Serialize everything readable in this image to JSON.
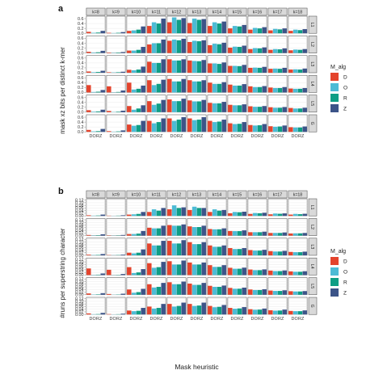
{
  "colors": {
    "D": "#E4432C",
    "O": "#4DBBD5",
    "R": "#0E9E85",
    "Z": "#3C5488"
  },
  "legend": {
    "title": "M_alg",
    "entries": [
      "D",
      "O",
      "R",
      "Z"
    ]
  },
  "chart_data": [
    {
      "panel_label": "a",
      "type": "bar",
      "ylabel": "mask xz bits per distinct k-mer",
      "xlabel": "",
      "ylim": [
        0,
        0.7
      ],
      "yticks": [
        "0.0",
        "0.2",
        "0.4",
        "0.6"
      ],
      "ytick_values": [
        0,
        0.2,
        0.4,
        0.6
      ],
      "columns": [
        "k=8",
        "k=9",
        "k=10",
        "k=11",
        "k=12",
        "k=13",
        "k=14",
        "k=15",
        "k=16",
        "k=17",
        "k=18"
      ],
      "rows": [
        "L1",
        "L2",
        "L3",
        "L4",
        "L5",
        "G"
      ],
      "x_tick_label": "DORZ",
      "categories": [
        "D",
        "O",
        "R",
        "Z"
      ],
      "values": [
        [
          [
            0.06,
            0.02,
            0.03,
            0.1
          ],
          [
            0.02,
            0.01,
            0.02,
            0.05
          ],
          [
            0.1,
            0.12,
            0.15,
            0.28
          ],
          [
            0.3,
            0.45,
            0.4,
            0.6
          ],
          [
            0.45,
            0.65,
            0.55,
            0.62
          ],
          [
            0.42,
            0.6,
            0.55,
            0.58
          ],
          [
            0.3,
            0.45,
            0.4,
            0.48
          ],
          [
            0.2,
            0.3,
            0.28,
            0.34
          ],
          [
            0.15,
            0.22,
            0.2,
            0.25
          ],
          [
            0.12,
            0.18,
            0.16,
            0.2
          ],
          [
            0.1,
            0.15,
            0.13,
            0.17
          ]
        ],
        [
          [
            0.05,
            0.02,
            0.03,
            0.09
          ],
          [
            0.02,
            0.01,
            0.02,
            0.04
          ],
          [
            0.1,
            0.1,
            0.13,
            0.25
          ],
          [
            0.35,
            0.4,
            0.4,
            0.55
          ],
          [
            0.5,
            0.55,
            0.52,
            0.58
          ],
          [
            0.45,
            0.5,
            0.48,
            0.52
          ],
          [
            0.32,
            0.38,
            0.36,
            0.42
          ],
          [
            0.22,
            0.26,
            0.25,
            0.3
          ],
          [
            0.16,
            0.2,
            0.19,
            0.23
          ],
          [
            0.13,
            0.16,
            0.15,
            0.19
          ],
          [
            0.11,
            0.14,
            0.13,
            0.16
          ]
        ],
        [
          [
            0.05,
            0.02,
            0.03,
            0.08
          ],
          [
            0.02,
            0.01,
            0.02,
            0.04
          ],
          [
            0.12,
            0.1,
            0.13,
            0.25
          ],
          [
            0.45,
            0.4,
            0.4,
            0.55
          ],
          [
            0.55,
            0.5,
            0.5,
            0.55
          ],
          [
            0.5,
            0.48,
            0.47,
            0.52
          ],
          [
            0.38,
            0.38,
            0.36,
            0.42
          ],
          [
            0.28,
            0.28,
            0.27,
            0.32
          ],
          [
            0.2,
            0.21,
            0.2,
            0.24
          ],
          [
            0.16,
            0.17,
            0.16,
            0.2
          ],
          [
            0.13,
            0.14,
            0.13,
            0.17
          ]
        ],
        [
          [
            0.3,
            0.02,
            0.03,
            0.1
          ],
          [
            0.25,
            0.01,
            0.02,
            0.08
          ],
          [
            0.4,
            0.12,
            0.15,
            0.28
          ],
          [
            0.5,
            0.3,
            0.35,
            0.52
          ],
          [
            0.55,
            0.45,
            0.45,
            0.55
          ],
          [
            0.5,
            0.45,
            0.45,
            0.5
          ],
          [
            0.4,
            0.35,
            0.35,
            0.42
          ],
          [
            0.32,
            0.28,
            0.28,
            0.34
          ],
          [
            0.25,
            0.22,
            0.22,
            0.26
          ],
          [
            0.2,
            0.18,
            0.18,
            0.22
          ],
          [
            0.16,
            0.15,
            0.15,
            0.18
          ]
        ],
        [
          [
            0.08,
            0.02,
            0.03,
            0.1
          ],
          [
            0.05,
            0.01,
            0.02,
            0.06
          ],
          [
            0.25,
            0.1,
            0.15,
            0.28
          ],
          [
            0.45,
            0.3,
            0.35,
            0.5
          ],
          [
            0.52,
            0.45,
            0.45,
            0.55
          ],
          [
            0.48,
            0.44,
            0.44,
            0.5
          ],
          [
            0.38,
            0.36,
            0.36,
            0.42
          ],
          [
            0.3,
            0.28,
            0.28,
            0.32
          ],
          [
            0.24,
            0.22,
            0.22,
            0.25
          ],
          [
            0.2,
            0.18,
            0.18,
            0.21
          ],
          [
            0.17,
            0.15,
            0.15,
            0.18
          ]
        ],
        [
          [
            0.08,
            0.02,
            0.03,
            0.12
          ],
          [
            0.03,
            0.01,
            0.02,
            0.06
          ],
          [
            0.3,
            0.25,
            0.28,
            0.45
          ],
          [
            0.45,
            0.35,
            0.4,
            0.55
          ],
          [
            0.55,
            0.45,
            0.5,
            0.6
          ],
          [
            0.55,
            0.48,
            0.5,
            0.6
          ],
          [
            0.45,
            0.4,
            0.42,
            0.5
          ],
          [
            0.35,
            0.32,
            0.33,
            0.4
          ],
          [
            0.28,
            0.26,
            0.27,
            0.32
          ],
          [
            0.23,
            0.21,
            0.22,
            0.26
          ],
          [
            0.19,
            0.18,
            0.18,
            0.22
          ]
        ]
      ]
    },
    {
      "panel_label": "b",
      "type": "bar",
      "ylabel": "#runs per superstring character",
      "xlabel": "Mask heuristic",
      "ylim": [
        0,
        0.13
      ],
      "yticks": [
        "0.00",
        "0.02",
        "0.04",
        "0.06",
        "0.08",
        "0.10",
        "0.12"
      ],
      "ytick_values": [
        0,
        0.02,
        0.04,
        0.06,
        0.08,
        0.1,
        0.12
      ],
      "columns": [
        "k=8",
        "k=9",
        "k=10",
        "k=11",
        "k=12",
        "k=13",
        "k=14",
        "k=15",
        "k=16",
        "k=17",
        "k=18"
      ],
      "rows": [
        "L1",
        "L2",
        "L3",
        "L4",
        "L5",
        "G"
      ],
      "x_tick_label": "DORZ",
      "categories": [
        "D",
        "O",
        "R",
        "Z"
      ],
      "values": [
        [
          [
            0.005,
            0.002,
            0.003,
            0.01
          ],
          [
            0.002,
            0.001,
            0.002,
            0.005
          ],
          [
            0.01,
            0.012,
            0.015,
            0.03
          ],
          [
            0.03,
            0.05,
            0.04,
            0.06
          ],
          [
            0.05,
            0.08,
            0.06,
            0.065
          ],
          [
            0.045,
            0.07,
            0.06,
            0.06
          ],
          [
            0.03,
            0.05,
            0.04,
            0.045
          ],
          [
            0.02,
            0.03,
            0.028,
            0.032
          ],
          [
            0.015,
            0.022,
            0.02,
            0.024
          ],
          [
            0.012,
            0.018,
            0.016,
            0.019
          ],
          [
            0.01,
            0.015,
            0.013,
            0.016
          ]
        ],
        [
          [
            0.005,
            0.002,
            0.003,
            0.01
          ],
          [
            0.002,
            0.001,
            0.002,
            0.005
          ],
          [
            0.012,
            0.012,
            0.015,
            0.035
          ],
          [
            0.06,
            0.055,
            0.055,
            0.075
          ],
          [
            0.08,
            0.075,
            0.075,
            0.085
          ],
          [
            0.07,
            0.065,
            0.065,
            0.075
          ],
          [
            0.05,
            0.048,
            0.048,
            0.055
          ],
          [
            0.035,
            0.034,
            0.034,
            0.04
          ],
          [
            0.026,
            0.026,
            0.026,
            0.03
          ],
          [
            0.02,
            0.02,
            0.02,
            0.024
          ],
          [
            0.016,
            0.017,
            0.017,
            0.02
          ]
        ],
        [
          [
            0.005,
            0.002,
            0.003,
            0.01
          ],
          [
            0.002,
            0.001,
            0.002,
            0.005
          ],
          [
            0.02,
            0.015,
            0.02,
            0.045
          ],
          [
            0.09,
            0.075,
            0.075,
            0.11
          ],
          [
            0.11,
            0.09,
            0.09,
            0.115
          ],
          [
            0.1,
            0.085,
            0.085,
            0.1
          ],
          [
            0.075,
            0.065,
            0.065,
            0.075
          ],
          [
            0.055,
            0.048,
            0.048,
            0.055
          ],
          [
            0.04,
            0.036,
            0.036,
            0.042
          ],
          [
            0.032,
            0.029,
            0.029,
            0.034
          ],
          [
            0.026,
            0.024,
            0.024,
            0.028
          ]
        ],
        [
          [
            0.05,
            0.002,
            0.003,
            0.012
          ],
          [
            0.04,
            0.001,
            0.002,
            0.008
          ],
          [
            0.06,
            0.015,
            0.02,
            0.045
          ],
          [
            0.09,
            0.055,
            0.06,
            0.1
          ],
          [
            0.105,
            0.08,
            0.08,
            0.11
          ],
          [
            0.095,
            0.08,
            0.08,
            0.095
          ],
          [
            0.075,
            0.062,
            0.062,
            0.075
          ],
          [
            0.055,
            0.048,
            0.048,
            0.056
          ],
          [
            0.042,
            0.037,
            0.037,
            0.043
          ],
          [
            0.034,
            0.03,
            0.03,
            0.035
          ],
          [
            0.028,
            0.025,
            0.025,
            0.029
          ]
        ],
        [
          [
            0.01,
            0.002,
            0.003,
            0.012
          ],
          [
            0.006,
            0.001,
            0.002,
            0.008
          ],
          [
            0.04,
            0.015,
            0.02,
            0.045
          ],
          [
            0.08,
            0.055,
            0.06,
            0.09
          ],
          [
            0.095,
            0.08,
            0.08,
            0.1
          ],
          [
            0.085,
            0.075,
            0.075,
            0.09
          ],
          [
            0.068,
            0.06,
            0.06,
            0.07
          ],
          [
            0.052,
            0.046,
            0.046,
            0.054
          ],
          [
            0.04,
            0.036,
            0.036,
            0.042
          ],
          [
            0.032,
            0.029,
            0.029,
            0.034
          ],
          [
            0.027,
            0.025,
            0.025,
            0.028
          ]
        ],
        [
          [
            0.008,
            0.002,
            0.003,
            0.012
          ],
          [
            0.003,
            0.001,
            0.002,
            0.006
          ],
          [
            0.03,
            0.025,
            0.028,
            0.05
          ],
          [
            0.06,
            0.045,
            0.05,
            0.08
          ],
          [
            0.08,
            0.06,
            0.065,
            0.09
          ],
          [
            0.08,
            0.065,
            0.068,
            0.09
          ],
          [
            0.065,
            0.055,
            0.058,
            0.072
          ],
          [
            0.05,
            0.044,
            0.046,
            0.056
          ],
          [
            0.04,
            0.036,
            0.037,
            0.045
          ],
          [
            0.032,
            0.029,
            0.03,
            0.037
          ],
          [
            0.027,
            0.025,
            0.025,
            0.031
          ]
        ]
      ]
    }
  ]
}
